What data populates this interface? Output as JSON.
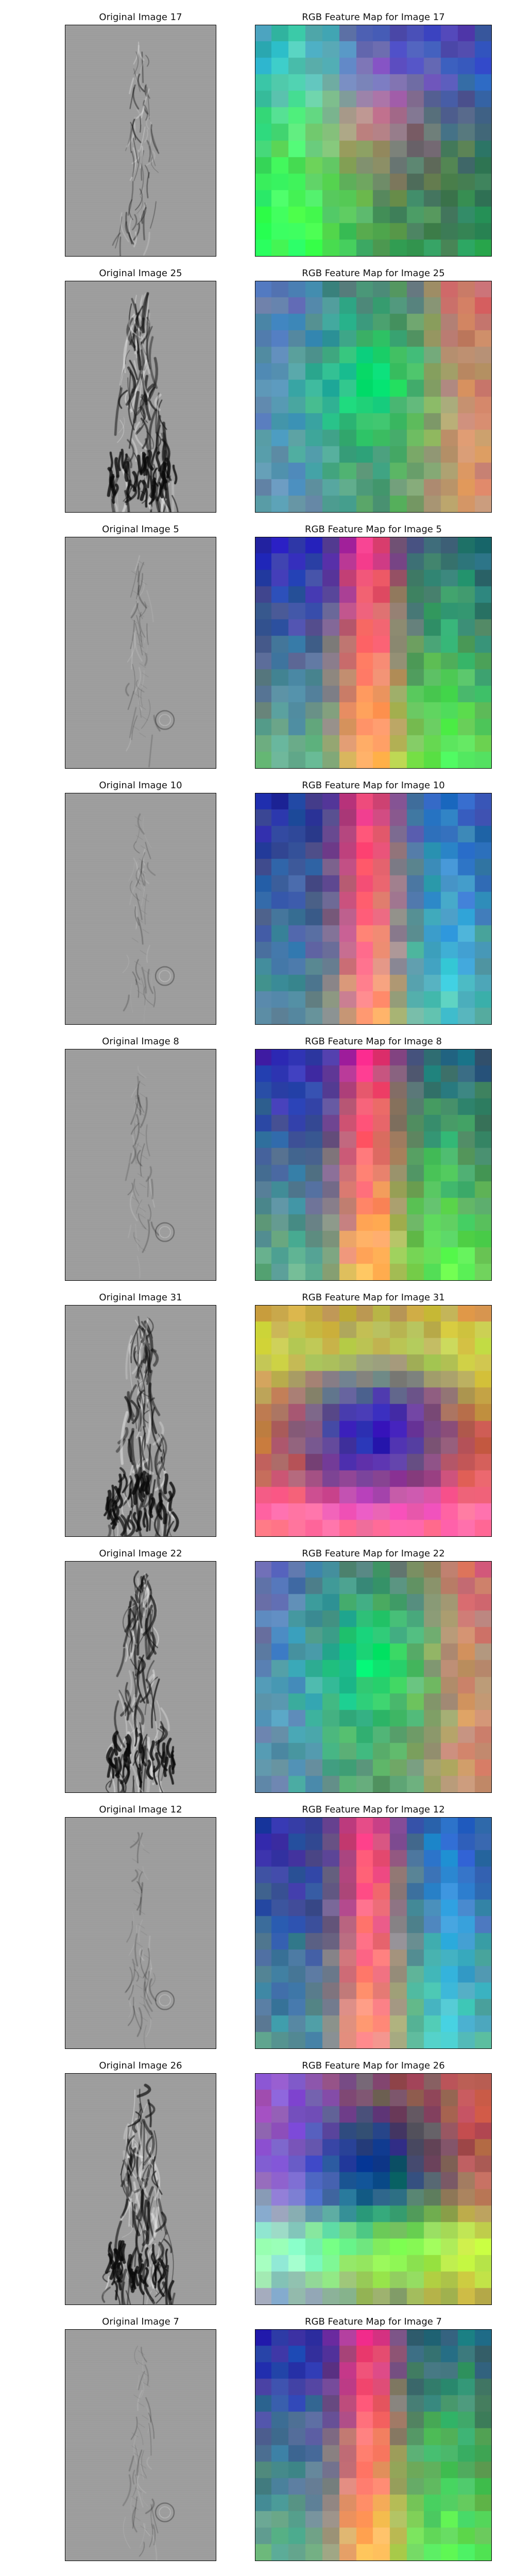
{
  "colors": {
    "background": "#ffffff",
    "title_text": "#111111",
    "frame": "#000000"
  },
  "rows": [
    {
      "left_title": "Original Image 17",
      "right_title": "RGB Feature Map for Image 17",
      "left_style": "sparse",
      "right_style": "warm-center"
    },
    {
      "left_title": "Original Image 25",
      "right_title": "RGB Feature Map for Image 25",
      "left_style": "dense",
      "right_style": "green-center"
    },
    {
      "left_title": "Original Image 5",
      "right_title": "RGB Feature Map for Image 5",
      "left_style": "faint",
      "right_style": "warm-stripe"
    },
    {
      "left_title": "Original Image 10",
      "right_title": "RGB Feature Map for Image 10",
      "left_style": "faint",
      "right_style": "warm-stripe-blue"
    },
    {
      "left_title": "Original Image 8",
      "right_title": "RGB Feature Map for Image 8",
      "left_style": "faint",
      "right_style": "warm-stripe"
    },
    {
      "left_title": "Original Image 31",
      "right_title": "RGB Feature Map for Image 31",
      "left_style": "dense",
      "right_style": "dark-center"
    },
    {
      "left_title": "Original Image 22",
      "right_title": "RGB Feature Map for Image 22",
      "left_style": "dense",
      "right_style": "green-center"
    },
    {
      "left_title": "Original Image 12",
      "right_title": "RGB Feature Map for Image 12",
      "left_style": "faint",
      "right_style": "warm-stripe-blue"
    },
    {
      "left_title": "Original Image 26",
      "right_title": "RGB Feature Map for Image 26",
      "left_style": "dense",
      "right_style": "dark-green"
    },
    {
      "left_title": "Original Image 7",
      "right_title": "RGB Feature Map for Image 7",
      "left_style": "faint",
      "right_style": "warm-stripe"
    }
  ]
}
